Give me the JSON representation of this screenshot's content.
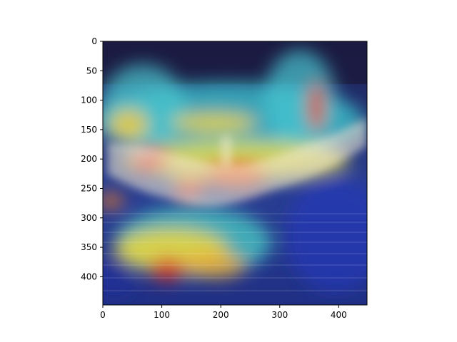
{
  "figure": {
    "kind": "image-with-heatmap-overlay",
    "overlay_colormap": "jet",
    "subject": "pelican-with-spread-wings-on-water"
  },
  "axes": {
    "x_ticks": [
      0,
      100,
      200,
      300,
      400
    ],
    "y_ticks": [
      0,
      50,
      100,
      150,
      200,
      250,
      300,
      350,
      400
    ],
    "x_range": [
      0,
      448
    ],
    "y_range": [
      448,
      0
    ],
    "grid": false
  },
  "colors": {
    "background_dark": "#141a4a",
    "water_dark": "#1c2a6e",
    "jet_red": "#d8322a",
    "jet_yellow": "#f1e13a",
    "jet_cyan": "#3fd3d6",
    "jet_blue": "#2242c8"
  }
}
